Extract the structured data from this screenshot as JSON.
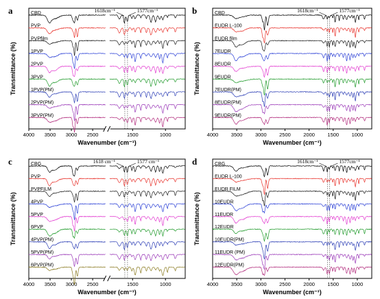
{
  "chart_data": [
    {
      "type": "line",
      "panel": "a",
      "xlabel": "Wavenumber (cm⁻¹)",
      "ylabel": "Transmittance (%)",
      "xlim": [
        4000,
        700
      ],
      "x_ticks": [
        4000,
        3500,
        3000,
        2500,
        1500,
        1000
      ],
      "x_tick_labels": [
        "4000",
        "3500",
        "3000",
        "2500",
        "1500",
        "1000"
      ],
      "axis_break": true,
      "markers": [
        {
          "x": 1618,
          "label": "1618cm⁻¹"
        },
        {
          "x": 1577,
          "label": "1577cm⁻¹"
        }
      ],
      "series": [
        {
          "name": "CBD",
          "color": "#000000"
        },
        {
          "name": "PVP",
          "color": "#e8312a"
        },
        {
          "name": "PVPfilm",
          "color": "#1a1a1a"
        },
        {
          "name": "1PVP",
          "color": "#2a3fd6"
        },
        {
          "name": "2PVP",
          "color": "#e23ad0"
        },
        {
          "name": "3PVP",
          "color": "#1f9a2a"
        },
        {
          "name": "1PVP(PM)",
          "color": "#2b3db5"
        },
        {
          "name": "2PVP(PM)",
          "color": "#9a38b8"
        },
        {
          "name": "3PVP(PM)",
          "color": "#b0287a"
        }
      ]
    },
    {
      "type": "line",
      "panel": "b",
      "xlabel": "Wavenumber (cm⁻¹)",
      "ylabel": "Transmittance (%)",
      "xlim": [
        4000,
        700
      ],
      "x_ticks": [
        4000,
        3500,
        3000,
        2500,
        2000,
        1500,
        1000
      ],
      "x_tick_labels": [
        "4000",
        "3500",
        "3000",
        "2500",
        "2000",
        "1500",
        "1000"
      ],
      "axis_break": false,
      "markers": [
        {
          "x": 1618,
          "label": "1618cm⁻¹"
        },
        {
          "x": 1577,
          "label": "1577cm⁻¹"
        }
      ],
      "series": [
        {
          "name": "CBD",
          "color": "#000000"
        },
        {
          "name": "EUDR L-100",
          "color": "#e8312a"
        },
        {
          "name": "EUDR film",
          "color": "#1a1a1a"
        },
        {
          "name": "7EUDR",
          "color": "#2a3fd6"
        },
        {
          "name": "8EUDR",
          "color": "#e23ad0"
        },
        {
          "name": "9EUDR",
          "color": "#1f9a2a"
        },
        {
          "name": "7EUDR(PM)",
          "color": "#2b3db5"
        },
        {
          "name": "8EUDR(PM)",
          "color": "#9a38b8"
        },
        {
          "name": "9EUDR(PM)",
          "color": "#b0287a"
        }
      ]
    },
    {
      "type": "line",
      "panel": "c",
      "xlabel": "Wavenumber (cm⁻¹)",
      "ylabel": "Transmittance (%)",
      "xlim": [
        4000,
        700
      ],
      "x_ticks": [
        4000,
        3500,
        3000,
        2500,
        1500,
        1000
      ],
      "x_tick_labels": [
        "4000",
        "3500",
        "3000",
        "2500",
        "1500",
        "1000"
      ],
      "axis_break": true,
      "markers": [
        {
          "x": 1618,
          "label": "1618 cm⁻¹"
        },
        {
          "x": 1577,
          "label": "1577 cm⁻¹"
        }
      ],
      "series": [
        {
          "name": "CBG",
          "color": "#000000"
        },
        {
          "name": "PVP",
          "color": "#e8312a"
        },
        {
          "name": "PVPFILM",
          "color": "#1a1a1a"
        },
        {
          "name": "4PVP",
          "color": "#2a3fd6"
        },
        {
          "name": "5PVP",
          "color": "#e23ad0"
        },
        {
          "name": "6PVP",
          "color": "#1f9a2a"
        },
        {
          "name": "4PVP(PM)",
          "color": "#2b3db5"
        },
        {
          "name": "5PVP(PM)",
          "color": "#9a38b8"
        },
        {
          "name": "6PVP(PM)",
          "color": "#8a7a20"
        }
      ]
    },
    {
      "type": "line",
      "panel": "d",
      "xlabel": "Wavenumber (cm⁻¹)",
      "ylabel": "Transmittance (%)",
      "xlim": [
        4000,
        700
      ],
      "x_ticks": [
        4000,
        3500,
        3000,
        2500,
        2000,
        1500,
        1000
      ],
      "x_tick_labels": [
        "4000",
        "3500",
        "3000",
        "2500",
        "2000",
        "1500",
        "1000"
      ],
      "axis_break": false,
      "markers": [
        {
          "x": 1618,
          "label": "1618cm⁻¹"
        },
        {
          "x": 1577,
          "label": "1577cm⁻¹"
        }
      ],
      "series": [
        {
          "name": "CBG",
          "color": "#000000"
        },
        {
          "name": "EUDR L-100",
          "color": "#e8312a"
        },
        {
          "name": "EUDR FILM",
          "color": "#1a1a1a"
        },
        {
          "name": "10EUDR",
          "color": "#2a3fd6"
        },
        {
          "name": "11EUDR",
          "color": "#e23ad0"
        },
        {
          "name": "12EUDR",
          "color": "#1f9a2a"
        },
        {
          "name": "10EUDR(PM)",
          "color": "#2b3db5"
        },
        {
          "name": "11EUDR (PM)",
          "color": "#9a38b8"
        },
        {
          "name": "12EUDR(PM)",
          "color": "#b0287a"
        }
      ]
    }
  ]
}
